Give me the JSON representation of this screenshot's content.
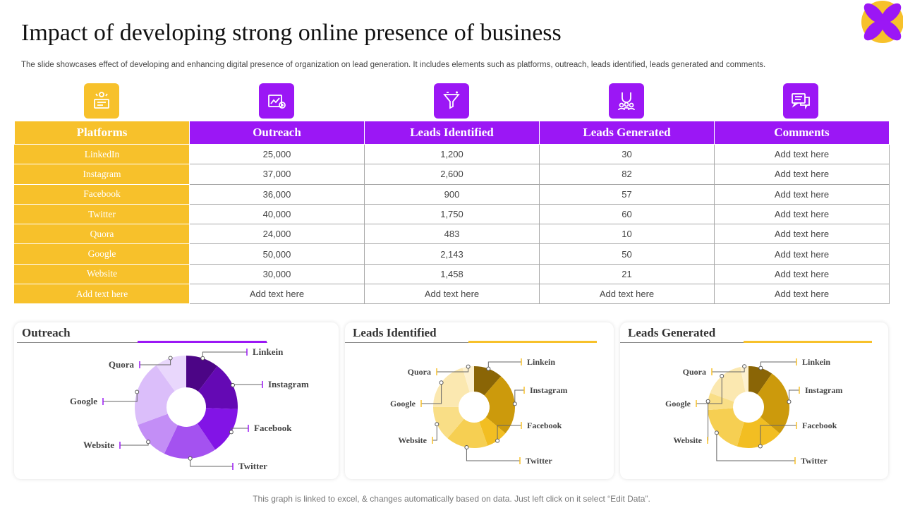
{
  "page": {
    "title": "Impact of developing strong online presence of business",
    "subtitle": "The slide showcases effect of developing and enhancing digital presence of organization on lead generation. It includes elements such as platforms, outreach, leads identified, leads generated and comments.",
    "footer": "This graph is linked to excel,  & changes automatically based on data. Just left click on it select “Edit Data”."
  },
  "colors": {
    "purple": "#9b17f5",
    "yellow": "#f7c12b"
  },
  "icons": [
    "certificate-icon",
    "analytics-icon",
    "funnel-icon",
    "magnet-users-icon",
    "chat-icon"
  ],
  "table": {
    "headers": [
      "Platforms",
      "Outreach",
      "Leads Identified",
      "Leads Generated",
      "Comments"
    ],
    "rows": [
      [
        "LinkedIn",
        "25,000",
        "1,200",
        "30",
        "Add text here"
      ],
      [
        "Instagram",
        "37,000",
        "2,600",
        "82",
        "Add text here"
      ],
      [
        "Facebook",
        "36,000",
        "900",
        "57",
        "Add text here"
      ],
      [
        "Twitter",
        "40,000",
        "1,750",
        "60",
        "Add text here"
      ],
      [
        "Quora",
        "24,000",
        "483",
        "10",
        "Add text here"
      ],
      [
        "Google",
        "50,000",
        "2,143",
        "50",
        "Add text here"
      ],
      [
        "Website",
        "30,000",
        "1,458",
        "21",
        "Add text here"
      ],
      [
        "Add text here",
        "Add text here",
        "Add text here",
        "Add text here",
        "Add text here"
      ]
    ]
  },
  "chart_data": [
    {
      "type": "pie",
      "title": "Outreach",
      "categories": [
        "Linkein",
        "Instagram",
        "Facebook",
        "Twitter",
        "Website",
        "Google",
        "Quora"
      ],
      "values": [
        25000,
        37000,
        36000,
        40000,
        30000,
        50000,
        24000
      ],
      "colors": [
        "#4c0586",
        "#6409b4",
        "#8214e6",
        "#a452f0",
        "#c38ef6",
        "#dbbefa",
        "#e9d7fc"
      ]
    },
    {
      "type": "pie",
      "title": "Leads Identified",
      "categories": [
        "Linkein",
        "Instagram",
        "Facebook",
        "Twitter",
        "Website",
        "Google",
        "Quora"
      ],
      "values": [
        1200,
        2600,
        900,
        1750,
        1458,
        2143,
        483
      ],
      "colors": [
        "#8a6506",
        "#cc9a0c",
        "#f2be22",
        "#f6cf52",
        "#f9de86",
        "#fbe8b0",
        "#fdf1d0"
      ]
    },
    {
      "type": "pie",
      "title": "Leads Generated",
      "categories": [
        "Linkein",
        "Instagram",
        "Facebook",
        "Twitter",
        "Website",
        "Google",
        "Quora"
      ],
      "values": [
        30,
        82,
        57,
        60,
        21,
        50,
        10
      ],
      "colors": [
        "#8a6506",
        "#cc9a0c",
        "#f2be22",
        "#f6cf52",
        "#f9de86",
        "#fbe8b0",
        "#fdf1d0"
      ]
    }
  ]
}
